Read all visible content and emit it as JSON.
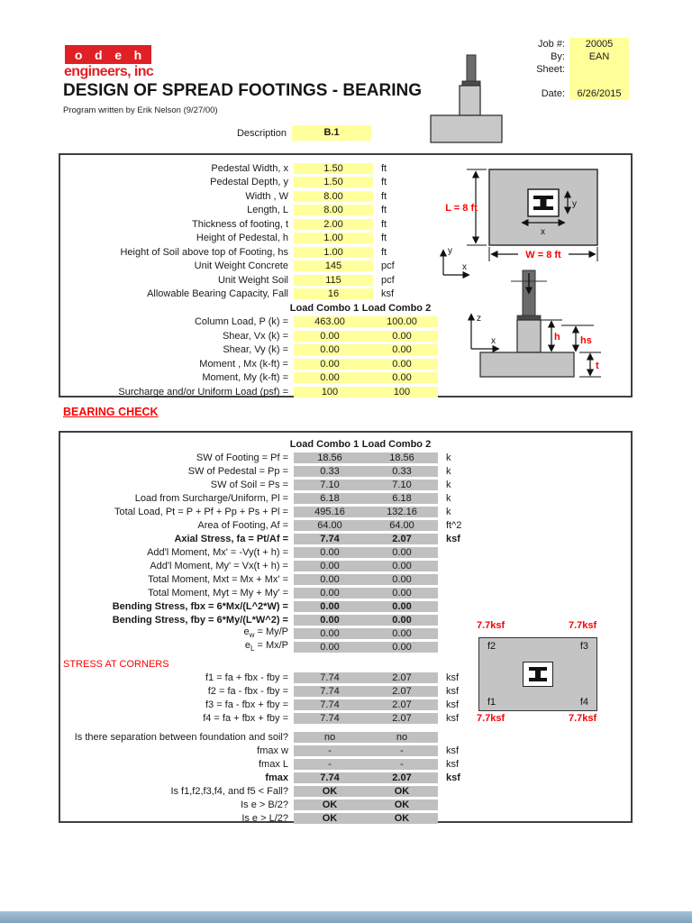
{
  "colors": {
    "accent_red": "#e12026",
    "highlight_yellow": "#ffff9c",
    "result_gray": "#c0c0c0",
    "dim_red": "#ff0000"
  },
  "header": {
    "logo_letters": [
      "o",
      "d",
      "e",
      "h"
    ],
    "logo_subtext": "engineers, inc",
    "title": "DESIGN OF SPREAD FOOTINGS - BEARING",
    "subtitle": "Program written by Erik Nelson (9/27/00)",
    "job": {
      "job_label": "Job #:",
      "job_value": "20005",
      "by_label": "By:",
      "by_value": "EAN",
      "sheet_label": "Sheet:",
      "sheet_value": "",
      "date_label": "Date:",
      "date_value": "6/26/2015"
    }
  },
  "description": {
    "label": "Description",
    "value": "B.1"
  },
  "input_table": {
    "rows": [
      {
        "label": "Pedestal Width, x",
        "value": "1.50",
        "unit": "ft"
      },
      {
        "label": "Pedestal Depth, y",
        "value": "1.50",
        "unit": "ft"
      },
      {
        "label": "Width , W",
        "value": "8.00",
        "unit": "ft"
      },
      {
        "label": "Length, L",
        "value": "8.00",
        "unit": "ft"
      },
      {
        "label": "Thickness of footing, t",
        "value": "2.00",
        "unit": "ft"
      },
      {
        "label": "Height of Pedestal, h",
        "value": "1.00",
        "unit": "ft"
      },
      {
        "label": "Height of Soil above top of Footing, hs",
        "value": "1.00",
        "unit": "ft"
      },
      {
        "label": "Unit Weight Concrete",
        "value": "145",
        "unit": "pcf"
      },
      {
        "label": "Unit Weight Soil",
        "value": "115",
        "unit": "pcf"
      },
      {
        "label": "Allowable Bearing Capacity, Fall",
        "value": "16",
        "unit": "ksf"
      }
    ]
  },
  "load_table": {
    "col1_header": "Load Combo 1",
    "col2_header": "Load Combo 2",
    "rows": [
      {
        "label": "Column Load, P (k) =",
        "v1": "463.00",
        "v2": "100.00"
      },
      {
        "label": "Shear, Vx (k) =",
        "v1": "0.00",
        "v2": "0.00"
      },
      {
        "label": "Shear, Vy (k)  =",
        "v1": "0.00",
        "v2": "0.00"
      },
      {
        "label": "Moment , Mx (k-ft)  =",
        "v1": "0.00",
        "v2": "0.00"
      },
      {
        "label": "Moment, My (k-ft)  =",
        "v1": "0.00",
        "v2": "0.00"
      },
      {
        "label": "Surcharge and/or Uniform Load (psf) =",
        "v1": "100",
        "v2": "100"
      }
    ]
  },
  "plan_diagram": {
    "length_label": "L = 8 ft",
    "width_label": "W = 8 ft",
    "ped_x_label": "x",
    "ped_y_label": "y",
    "axis_x": "x",
    "axis_y": "y"
  },
  "elev_diagram": {
    "h_label": "h",
    "hs_label": "hs",
    "t_label": "t",
    "axis_z": "z",
    "axis_x": "x"
  },
  "bearing_check": {
    "title": "BEARING CHECK",
    "col1_header": "Load Combo 1",
    "col2_header": "Load Combo 2",
    "rows1": [
      {
        "label": "SW of Footing = Pf =",
        "v1": "18.56",
        "v2": "18.56",
        "unit": "k"
      },
      {
        "label": "SW of Pedestal = Pp =",
        "v1": "0.33",
        "v2": "0.33",
        "unit": "k"
      },
      {
        "label": "SW of Soil = Ps =",
        "v1": "7.10",
        "v2": "7.10",
        "unit": "k"
      },
      {
        "label": "Load from Surcharge/Uniform, Pl =",
        "v1": "6.18",
        "v2": "6.18",
        "unit": "k"
      },
      {
        "label": "Total Load, Pt = P + Pf + Pp + Ps + Pl =",
        "v1": "495.16",
        "v2": "132.16",
        "unit": "k"
      },
      {
        "label": "Area of Footing, Af =",
        "v1": "64.00",
        "v2": "64.00",
        "unit": "ft^2"
      },
      {
        "label": "Axial Stress, fa = Pt/Af =",
        "v1": "7.74",
        "v2": "2.07",
        "unit": "ksf",
        "bold": true
      },
      {
        "label": "Add'l Moment, Mx' = -Vy(t + h) =",
        "v1": "0.00",
        "v2": "0.00",
        "unit": ""
      },
      {
        "label": "Add'l Moment, My' = Vx(t + h) =",
        "v1": "0.00",
        "v2": "0.00",
        "unit": ""
      },
      {
        "label": "Total Moment, Mxt = Mx + Mx' =",
        "v1": "0.00",
        "v2": "0.00",
        "unit": ""
      },
      {
        "label": "Total Moment, Myt = My + My' =",
        "v1": "0.00",
        "v2": "0.00",
        "unit": ""
      },
      {
        "label": "Bending Stress, fbx = 6*Mx/(L^2*W) =",
        "v1": "0.00",
        "v2": "0.00",
        "unit": "",
        "bold": true
      },
      {
        "label": "Bending Stress, fby = 6*My/(L*W^2) =",
        "v1": "0.00",
        "v2": "0.00",
        "unit": "",
        "bold": true
      },
      {
        "label": "e~w~ = My/P",
        "v1": "0.00",
        "v2": "0.00",
        "unit": ""
      },
      {
        "label": "e~L~ = Mx/P",
        "v1": "0.00",
        "v2": "0.00",
        "unit": ""
      }
    ],
    "stress_title": "STRESS AT CORNERS",
    "rows2": [
      {
        "label": "f1 = fa + fbx - fby =",
        "v1": "7.74",
        "v2": "2.07",
        "unit": "ksf"
      },
      {
        "label": "f2 = fa - fbx - fby =",
        "v1": "7.74",
        "v2": "2.07",
        "unit": "ksf"
      },
      {
        "label": "f3 = fa - fbx + fby =",
        "v1": "7.74",
        "v2": "2.07",
        "unit": "ksf"
      },
      {
        "label": "f4 = fa + fbx + fby =",
        "v1": "7.74",
        "v2": "2.07",
        "unit": "ksf"
      }
    ],
    "rows3": [
      {
        "label": "Is there separation between foundation and soil?",
        "v1": "no",
        "v2": "no",
        "unit": ""
      },
      {
        "label": "fmax w",
        "v1": "-",
        "v2": "-",
        "unit": "ksf"
      },
      {
        "label": "fmax L",
        "v1": "-",
        "v2": "-",
        "unit": "ksf"
      },
      {
        "label": "fmax",
        "v1": "7.74",
        "v2": "2.07",
        "unit": "ksf",
        "bold": true
      },
      {
        "label": "Is f1,f2,f3,f4, and f5 < Fall?",
        "v1": "OK",
        "v2": "OK",
        "unit": "",
        "bold_vals": true
      },
      {
        "label": "Is e > B/2?",
        "v1": "OK",
        "v2": "OK",
        "unit": "",
        "bold_vals": true
      },
      {
        "label": "Is e > L/2?",
        "v1": "OK",
        "v2": "OK",
        "unit": "",
        "bold_vals": true
      }
    ]
  },
  "corner_diagram": {
    "tl": "7.7ksf",
    "tr": "7.7ksf",
    "bl": "7.7ksf",
    "br": "7.7ksf",
    "f1": "f1",
    "f2": "f2",
    "f3": "f3",
    "f4": "f4"
  }
}
